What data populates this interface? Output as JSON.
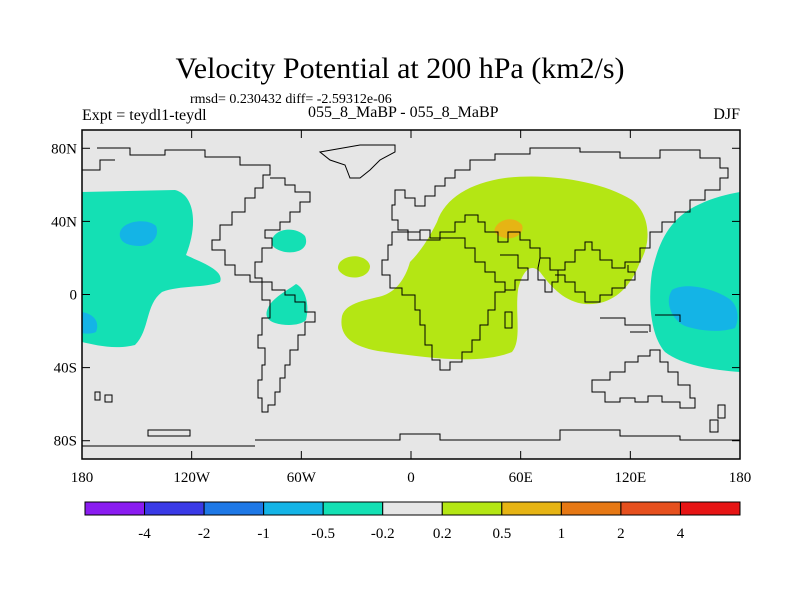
{
  "title": "Velocity Potential at 200 hPa (km2/s)",
  "stats": "rmsd= 0.230432 diff= -2.59312e-06",
  "expt": "Expt = teydl1-teydl",
  "pair": "055_8_MaBP - 055_8_MaBP",
  "season": "DJF",
  "map": {
    "lon_range": [
      -180,
      180
    ],
    "lat_range": [
      -90,
      90
    ],
    "background_color": "#e6e6e6",
    "x_ticks": [
      {
        "lon": -180,
        "label": "180"
      },
      {
        "lon": -120,
        "label": "120W"
      },
      {
        "lon": -60,
        "label": "60W"
      },
      {
        "lon": 0,
        "label": "0"
      },
      {
        "lon": 60,
        "label": "60E"
      },
      {
        "lon": 120,
        "label": "120E"
      },
      {
        "lon": 180,
        "label": "180"
      }
    ],
    "y_ticks": [
      {
        "lat": 80,
        "label": "80N"
      },
      {
        "lat": 40,
        "label": "40N"
      },
      {
        "lat": 0,
        "label": "0"
      },
      {
        "lat": -40,
        "label": "40S"
      },
      {
        "lat": -80,
        "label": "80S"
      }
    ]
  },
  "colorbar": {
    "colors": [
      "#8a1cf0",
      "#3a3ae6",
      "#1e78e6",
      "#14b4e6",
      "#14e0b4",
      "#e6e6e6",
      "#b4e614",
      "#e6b414",
      "#e67814",
      "#e6501e",
      "#e61414"
    ],
    "labels": [
      "-4",
      "-2",
      "-1",
      "-0.5",
      "-0.2",
      "0.2",
      "0.5",
      "1",
      "2",
      "4"
    ]
  },
  "regions": [
    {
      "name": "positive-anomaly-africa-asia",
      "level": "0.2 to 0.5",
      "color": "#b4e614"
    },
    {
      "name": "positive-anomaly-middle-east",
      "level": "0.5 to 1",
      "color": "#e6b414"
    },
    {
      "name": "negative-anomaly-east-pacific",
      "level": "-0.5 to -0.2",
      "color": "#14e0b4"
    },
    {
      "name": "negative-anomaly-west-pacific",
      "level": "-0.5 to -0.2",
      "color": "#14e0b4"
    },
    {
      "name": "negative-anomaly-core",
      "level": "-1 to -0.5",
      "color": "#14b4e6"
    }
  ]
}
